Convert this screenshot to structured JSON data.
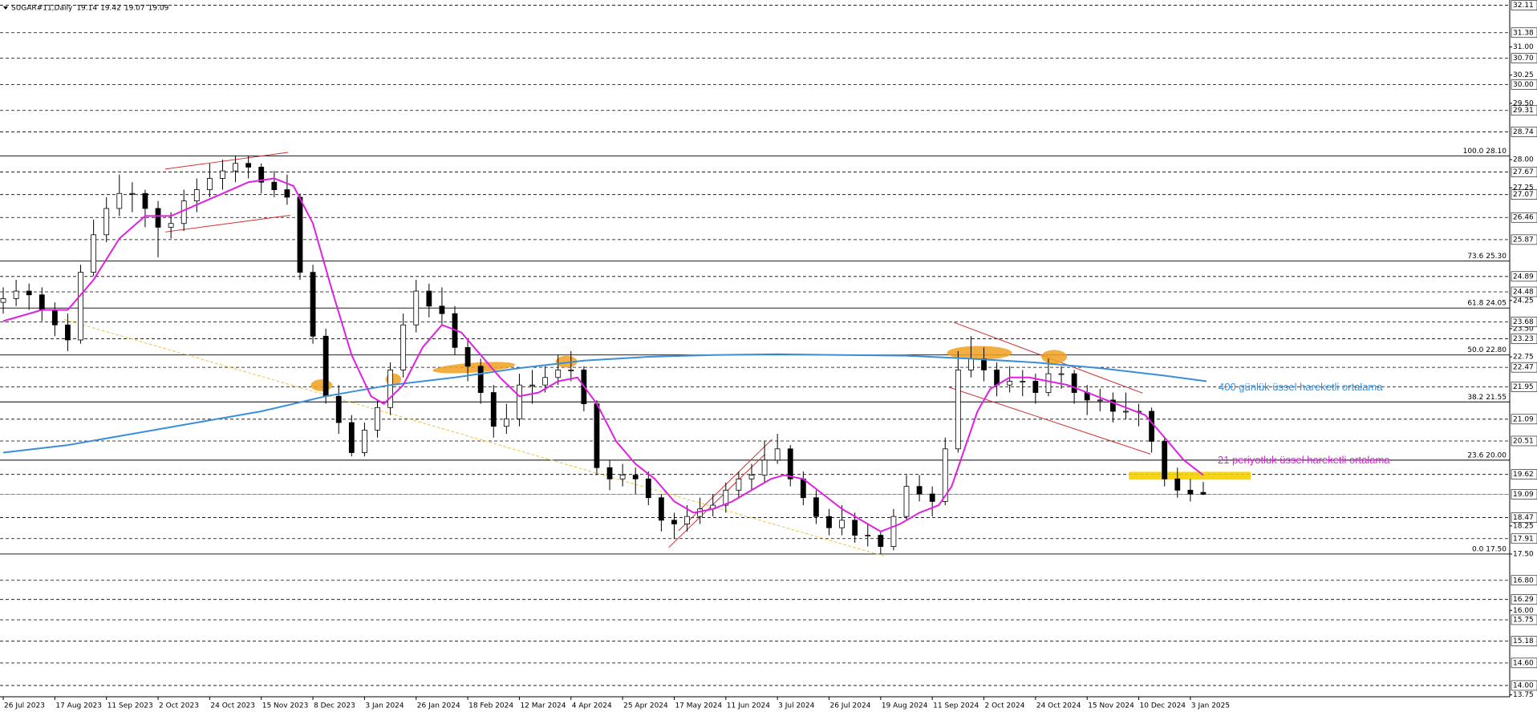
{
  "chart_data": {
    "type": "candlestick",
    "title": "SUGAR#11,Daily",
    "title_values": [
      19.14,
      19.42,
      19.07,
      19.09
    ],
    "xlim": [
      -1,
      467
    ],
    "ylim": [
      13.7,
      32.25
    ],
    "xticks": [
      {
        "value": 0,
        "label": "26 Jul 2023"
      },
      {
        "value": 16,
        "label": "17 Aug 2023"
      },
      {
        "value": 32,
        "label": "11 Sep 2023"
      },
      {
        "value": 48,
        "label": "2 Oct 2023"
      },
      {
        "value": 64,
        "label": "24 Oct 2023"
      },
      {
        "value": 80,
        "label": "15 Nov 2023"
      },
      {
        "value": 96,
        "label": "8 Dec 2023"
      },
      {
        "value": 112,
        "label": "3 Jan 2024"
      },
      {
        "value": 128,
        "label": "26 Jan 2024"
      },
      {
        "value": 144,
        "label": "18 Feb 2024"
      },
      {
        "value": 160,
        "label": "12 Mar 2024"
      },
      {
        "value": 176,
        "label": "4 Apr 2024"
      },
      {
        "value": 192,
        "label": "25 Apr 2024"
      },
      {
        "value": 208,
        "label": "17 May 2024"
      },
      {
        "value": 224,
        "label": "11 Jun 2024"
      },
      {
        "value": 240,
        "label": "3 Jul 2024"
      },
      {
        "value": 256,
        "label": "26 Jul 2024"
      },
      {
        "value": 272,
        "label": "19 Aug 2024"
      },
      {
        "value": 288,
        "label": "11 Sep 2024"
      },
      {
        "value": 304,
        "label": "2 Oct 2024"
      },
      {
        "value": 320,
        "label": "24 Oct 2024"
      },
      {
        "value": 336,
        "label": "15 Nov 2024"
      },
      {
        "value": 352,
        "label": "10 Dec 2024"
      },
      {
        "value": 368,
        "label": "3 Jan 2025"
      }
    ],
    "yticks": [
      {
        "value": 31,
        "label": "31.00"
      },
      30.25,
      {
        "value": 29.5,
        "label": "29.50"
      },
      {
        "value": 28,
        "label": "28.00"
      },
      27.25,
      24.25,
      {
        "value": 23.5,
        "label": "23.50"
      },
      22.75,
      18.25,
      {
        "value": 17.5,
        "label": "17.50"
      },
      {
        "value": 16,
        "label": "16.00"
      },
      13.75
    ],
    "levels": [
      32.11,
      31.38,
      {
        "value": 30.7,
        "label": "30.70"
      },
      {
        "value": 30,
        "label": "30.00"
      },
      29.31,
      28.74,
      27.67,
      27.07,
      26.46,
      25.87,
      24.89,
      24.48,
      23.68,
      23.23,
      22.47,
      21.95,
      21.09,
      20.51,
      19.62,
      19.09,
      18.47,
      17.91,
      {
        "value": 16.8,
        "label": "16.80"
      },
      16.29,
      15.75,
      15.18,
      {
        "value": 14.6,
        "label": "14.60"
      },
      {
        "value": 14,
        "label": "14.00"
      }
    ],
    "fibonacci": [
      {
        "value": 28.1,
        "label": "100.0 28.10"
      },
      {
        "value": 25.3,
        "label": "73.6 25.30"
      },
      {
        "value": 24.05,
        "label": "61.8 24.05"
      },
      {
        "value": 22.8,
        "label": "50.0 22.80"
      },
      {
        "value": 21.55,
        "label": "38.2 21.55"
      },
      {
        "value": 20,
        "label": "23.6 20.00"
      },
      {
        "value": 17.5,
        "label": "0.0 17.50"
      }
    ],
    "x": [
      0,
      4,
      8,
      12,
      16,
      20,
      24,
      28,
      32,
      36,
      40,
      44,
      48,
      52,
      56,
      60,
      64,
      68,
      72,
      76,
      80,
      84,
      88,
      92,
      96,
      100,
      104,
      108,
      112,
      116,
      120,
      124,
      128,
      132,
      136,
      140,
      144,
      148,
      152,
      156,
      160,
      164,
      168,
      172,
      176,
      180,
      184,
      188,
      192,
      196,
      200,
      204,
      208,
      212,
      216,
      220,
      224,
      228,
      232,
      236,
      240,
      244,
      248,
      252,
      256,
      260,
      264,
      268,
      272,
      276,
      280,
      284,
      288,
      292,
      296,
      300,
      304,
      308,
      312,
      316,
      320,
      324,
      328,
      332,
      336,
      340,
      344,
      348,
      352,
      356,
      360,
      364,
      368,
      372
    ],
    "ohlc": [
      [
        24.2,
        24.6,
        23.9,
        24.3
      ],
      [
        24.3,
        24.8,
        24.1,
        24.5
      ],
      [
        24.5,
        24.7,
        24.0,
        24.4
      ],
      [
        24.4,
        24.6,
        23.7,
        24.0
      ],
      [
        24.0,
        24.2,
        23.3,
        23.6
      ],
      [
        23.6,
        23.9,
        22.9,
        23.2
      ],
      [
        23.2,
        25.2,
        23.1,
        25.0
      ],
      [
        25.0,
        26.4,
        24.9,
        26.0
      ],
      [
        26.0,
        27.0,
        25.8,
        26.7
      ],
      [
        26.7,
        27.6,
        26.5,
        27.1
      ],
      [
        27.1,
        27.4,
        26.6,
        27.1
      ],
      [
        27.1,
        27.2,
        26.2,
        26.7
      ],
      [
        26.7,
        26.9,
        25.4,
        26.2
      ],
      [
        26.2,
        26.6,
        25.9,
        26.3
      ],
      [
        26.3,
        27.2,
        26.1,
        26.9
      ],
      [
        26.9,
        27.5,
        26.6,
        27.2
      ],
      [
        27.2,
        27.9,
        27.0,
        27.5
      ],
      [
        27.5,
        28.0,
        27.2,
        27.7
      ],
      [
        27.7,
        28.1,
        27.4,
        27.9
      ],
      [
        27.9,
        28.1,
        27.5,
        27.8
      ],
      [
        27.8,
        27.9,
        27.1,
        27.4
      ],
      [
        27.4,
        27.7,
        27.0,
        27.2
      ],
      [
        27.2,
        27.6,
        26.8,
        27.0
      ],
      [
        27.0,
        27.1,
        24.8,
        25.0
      ],
      [
        25.0,
        25.2,
        23.1,
        23.3
      ],
      [
        23.3,
        23.5,
        21.5,
        21.7
      ],
      [
        21.7,
        22.0,
        20.7,
        21.0
      ],
      [
        21.0,
        21.2,
        20.1,
        20.2
      ],
      [
        20.2,
        21.0,
        20.1,
        20.8
      ],
      [
        20.8,
        21.6,
        20.6,
        21.4
      ],
      [
        21.4,
        22.6,
        21.2,
        22.4
      ],
      [
        22.4,
        23.9,
        22.2,
        23.6
      ],
      [
        23.6,
        24.8,
        23.4,
        24.5
      ],
      [
        24.5,
        24.7,
        23.8,
        24.1
      ],
      [
        24.1,
        24.6,
        23.6,
        23.9
      ],
      [
        23.9,
        24.1,
        22.8,
        23.0
      ],
      [
        23.0,
        23.2,
        22.1,
        22.5
      ],
      [
        22.5,
        22.7,
        21.5,
        21.8
      ],
      [
        21.8,
        22.0,
        20.6,
        20.9
      ],
      [
        20.9,
        21.5,
        20.7,
        21.1
      ],
      [
        21.1,
        22.3,
        20.9,
        22.0
      ],
      [
        22.0,
        22.4,
        21.5,
        22.0
      ],
      [
        22.0,
        22.5,
        21.8,
        22.2
      ],
      [
        22.2,
        22.8,
        22.0,
        22.4
      ],
      [
        22.4,
        22.9,
        22.1,
        22.4
      ],
      [
        22.4,
        22.5,
        21.3,
        21.5
      ],
      [
        21.5,
        21.6,
        19.6,
        19.8
      ],
      [
        19.8,
        20.0,
        19.2,
        19.5
      ],
      [
        19.5,
        19.9,
        19.3,
        19.6
      ],
      [
        19.6,
        19.8,
        19.1,
        19.5
      ],
      [
        19.5,
        19.7,
        18.8,
        19.0
      ],
      [
        19.0,
        19.1,
        18.1,
        18.4
      ],
      [
        18.4,
        18.6,
        17.9,
        18.3
      ],
      [
        18.3,
        18.8,
        18.1,
        18.5
      ],
      [
        18.5,
        19.0,
        18.3,
        18.7
      ],
      [
        18.7,
        19.1,
        18.5,
        18.8
      ],
      [
        18.8,
        19.4,
        18.6,
        19.2
      ],
      [
        19.2,
        19.7,
        19.0,
        19.5
      ],
      [
        19.5,
        19.9,
        19.2,
        19.6
      ],
      [
        19.6,
        20.5,
        19.4,
        20.0
      ],
      [
        20.0,
        20.7,
        19.9,
        20.3
      ],
      [
        20.3,
        20.4,
        19.3,
        19.5
      ],
      [
        19.5,
        19.7,
        18.8,
        19.0
      ],
      [
        19.0,
        19.2,
        18.3,
        18.5
      ],
      [
        18.5,
        18.7,
        18.0,
        18.2
      ],
      [
        18.2,
        18.8,
        18.0,
        18.4
      ],
      [
        18.4,
        18.6,
        17.8,
        18.0
      ],
      [
        18.0,
        18.3,
        17.7,
        18.0
      ],
      [
        18.0,
        18.1,
        17.5,
        17.7
      ],
      [
        17.7,
        18.7,
        17.6,
        18.5
      ],
      [
        18.5,
        19.6,
        18.4,
        19.3
      ],
      [
        19.3,
        19.6,
        18.9,
        19.1
      ],
      [
        19.1,
        19.3,
        18.5,
        18.9
      ],
      [
        18.9,
        20.6,
        18.8,
        20.3
      ],
      [
        20.3,
        22.9,
        20.2,
        22.4
      ],
      [
        22.4,
        23.3,
        22.2,
        22.7
      ],
      [
        22.7,
        23.0,
        22.1,
        22.4
      ],
      [
        22.4,
        22.6,
        21.7,
        22.0
      ],
      [
        22.0,
        22.5,
        21.8,
        22.1
      ],
      [
        22.1,
        22.4,
        21.7,
        22.1
      ],
      [
        22.1,
        22.3,
        21.5,
        21.8
      ],
      [
        21.8,
        22.7,
        21.7,
        22.3
      ],
      [
        22.3,
        22.5,
        21.9,
        22.3
      ],
      [
        22.3,
        22.4,
        21.5,
        21.8
      ],
      [
        21.8,
        22.0,
        21.2,
        21.6
      ],
      [
        21.6,
        21.9,
        21.3,
        21.6
      ],
      [
        21.6,
        21.8,
        21.0,
        21.3
      ],
      [
        21.3,
        21.8,
        21.1,
        21.3
      ],
      [
        21.3,
        21.5,
        20.9,
        21.3
      ],
      [
        21.3,
        21.4,
        20.2,
        20.5
      ],
      [
        20.5,
        20.6,
        19.3,
        19.5
      ],
      [
        19.5,
        19.8,
        19.0,
        19.2
      ],
      [
        19.2,
        19.5,
        18.9,
        19.1
      ],
      [
        19.14,
        19.42,
        19.07,
        19.09
      ]
    ],
    "overlays": [
      {
        "name": "400 günlük üssel hareketli ortalama",
        "color": "#3a8fd8",
        "x": [
          0,
          20,
          40,
          60,
          80,
          100,
          120,
          140,
          160,
          180,
          200,
          220,
          240,
          260,
          280,
          300,
          320,
          340,
          360,
          373
        ],
        "values": [
          20.2,
          20.4,
          20.7,
          21.0,
          21.3,
          21.7,
          22.0,
          22.2,
          22.45,
          22.65,
          22.75,
          22.8,
          22.82,
          22.8,
          22.78,
          22.7,
          22.6,
          22.45,
          22.25,
          22.1
        ]
      },
      {
        "name": "21 periyotluk üssel hareketli ortalama",
        "color": "#e020e0",
        "x": [
          0,
          12,
          20,
          28,
          36,
          44,
          52,
          60,
          68,
          76,
          84,
          90,
          96,
          102,
          108,
          114,
          118,
          124,
          130,
          136,
          142,
          148,
          154,
          160,
          166,
          172,
          178,
          184,
          190,
          196,
          202,
          208,
          214,
          220,
          226,
          232,
          238,
          242,
          248,
          254,
          260,
          266,
          272,
          278,
          284,
          290,
          294,
          298,
          302,
          306,
          312,
          318,
          324,
          330,
          336,
          342,
          348,
          354,
          358,
          362,
          366,
          372
        ],
        "values": [
          23.7,
          24.0,
          24.0,
          24.8,
          25.9,
          26.5,
          26.5,
          26.8,
          27.1,
          27.4,
          27.5,
          27.3,
          26.3,
          24.5,
          22.8,
          21.7,
          21.5,
          22.0,
          23.0,
          23.6,
          23.4,
          22.8,
          22.2,
          21.7,
          21.8,
          22.1,
          22.2,
          21.5,
          20.5,
          19.9,
          19.5,
          18.9,
          18.6,
          18.7,
          18.9,
          19.2,
          19.5,
          19.6,
          19.5,
          19.1,
          18.7,
          18.4,
          18.1,
          18.3,
          18.6,
          18.8,
          19.3,
          20.3,
          21.3,
          21.9,
          22.2,
          22.2,
          22.1,
          22.0,
          21.8,
          21.6,
          21.4,
          21.2,
          20.8,
          20.4,
          20.0,
          19.6
        ]
      }
    ]
  }
}
